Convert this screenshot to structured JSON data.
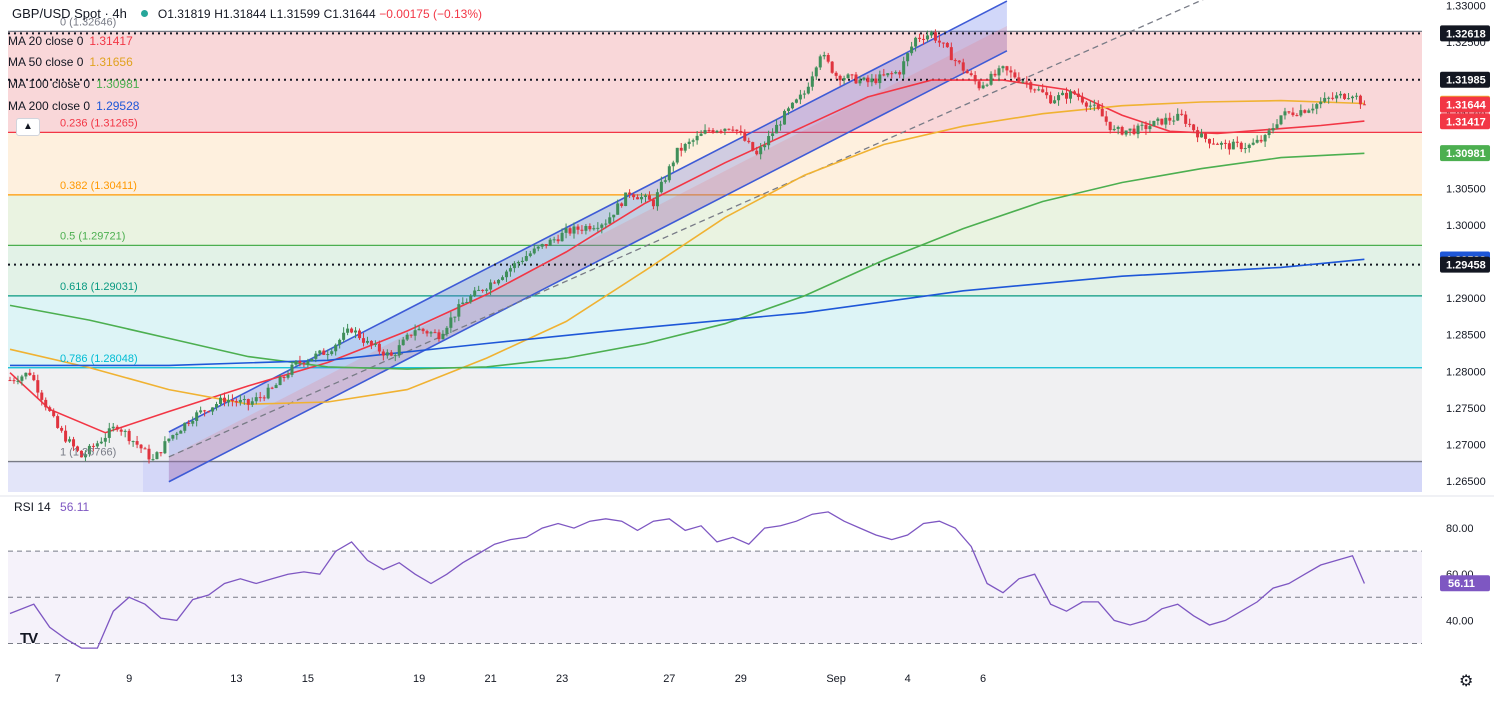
{
  "header": {
    "symbol": "GBP/USD Spot · 4h",
    "open": "O1.31819",
    "high": "H1.31844",
    "low": "L1.31599",
    "close": "C1.31644",
    "change": "−0.00175 (−0.13%)",
    "change_color": "#f23645"
  },
  "indicators": [
    {
      "label": "MA 20 close 0",
      "value": "1.31417",
      "color": "#f23645"
    },
    {
      "label": "MA 50 close 0",
      "value": "1.31656",
      "color": "#f0b232"
    },
    {
      "label": "MA 100 close 0",
      "value": "1.30981",
      "color": "#4caf50"
    },
    {
      "label": "MA 200 close 0",
      "value": "1.29528",
      "color": "#1e57d8"
    }
  ],
  "collapse_icon": "chevron-up-icon",
  "rsi_header": {
    "label": "RSI 14",
    "value": "56.11",
    "color": "#7e57c2"
  },
  "fib_levels": [
    {
      "ratio": 0,
      "label": "0 (1.32646)",
      "price": 1.32646,
      "color": "#787b86",
      "band": "#f7c9cc"
    },
    {
      "ratio": 0.236,
      "label": "0.236 (1.31265)",
      "price": 1.31265,
      "color": "#f23645",
      "band": "#fdebd3"
    },
    {
      "ratio": 0.382,
      "label": "0.382 (1.30411)",
      "price": 1.30411,
      "color": "#ff9800",
      "band": "#e3efd7"
    },
    {
      "ratio": 0.5,
      "label": "0.5 (1.29721)",
      "price": 1.29721,
      "color": "#4caf50",
      "band": "#d8eedf"
    },
    {
      "ratio": 0.618,
      "label": "0.618 (1.29031)",
      "price": 1.29031,
      "color": "#089981",
      "band": "#d2f0f3"
    },
    {
      "ratio": 0.786,
      "label": "0.786 (1.28048)",
      "price": 1.28048,
      "color": "#00bcd4",
      "band": "#ebebee"
    },
    {
      "ratio": 1,
      "label": "1 (1.26766)",
      "price": 1.26766,
      "color": "#787b86",
      "band": "#d9dcf7"
    }
  ],
  "horizontal_lines": [
    1.32618,
    1.31985,
    1.29458
  ],
  "chart_data": [
    {
      "type": "candlestick",
      "title": "GBP/USD Spot · 4h",
      "x_ticks": [
        "7",
        "9",
        "13",
        "15",
        "19",
        "21",
        "23",
        "27",
        "29",
        "Sep",
        "4",
        "6"
      ],
      "y_ticks": [
        "1.33000",
        "1.32500",
        "1.32000",
        "1.31500",
        "1.31000",
        "1.30500",
        "1.30000",
        "1.29500",
        "1.29000",
        "1.28500",
        "1.28000",
        "1.27500",
        "1.27000",
        "1.26500"
      ],
      "ylim": [
        1.2635,
        1.3302
      ],
      "price_tags": [
        {
          "value": "1.32618",
          "bg": "#131722",
          "fg": "#ffffff"
        },
        {
          "value": "1.31985",
          "bg": "#131722",
          "fg": "#ffffff"
        },
        {
          "value": "1.31656",
          "bg": "#f0b232",
          "fg": "#131722"
        },
        {
          "value": "1.31644",
          "bg": "#f23645",
          "fg": "#ffffff"
        },
        {
          "value": "1.31417",
          "bg": "#f23645",
          "fg": "#ffffff"
        },
        {
          "value": "1.30981",
          "bg": "#4caf50",
          "fg": "#ffffff"
        },
        {
          "value": "1.29528",
          "bg": "#1e57d8",
          "fg": "#ffffff"
        },
        {
          "value": "1.29458",
          "bg": "#131722",
          "fg": "#ffffff"
        }
      ],
      "waypoints": [
        [
          0,
          1.2788
        ],
        [
          5,
          1.2798
        ],
        [
          12,
          1.2722
        ],
        [
          18,
          1.2683
        ],
        [
          27,
          1.2726
        ],
        [
          33,
          1.2695
        ],
        [
          36,
          1.2678
        ],
        [
          40,
          1.2708
        ],
        [
          46,
          1.2738
        ],
        [
          54,
          1.2762
        ],
        [
          60,
          1.2755
        ],
        [
          66,
          1.2775
        ],
        [
          72,
          1.281
        ],
        [
          80,
          1.2828
        ],
        [
          86,
          1.2858
        ],
        [
          90,
          1.2838
        ],
        [
          96,
          1.282
        ],
        [
          102,
          1.2858
        ],
        [
          108,
          1.285
        ],
        [
          114,
          1.2893
        ],
        [
          122,
          1.2925
        ],
        [
          130,
          1.2958
        ],
        [
          140,
          1.299
        ],
        [
          150,
          1.3005
        ],
        [
          156,
          1.3045
        ],
        [
          162,
          1.303
        ],
        [
          168,
          1.31
        ],
        [
          176,
          1.313
        ],
        [
          182,
          1.3135
        ],
        [
          188,
          1.3095
        ],
        [
          195,
          1.315
        ],
        [
          200,
          1.318
        ],
        [
          204,
          1.3235
        ],
        [
          208,
          1.3205
        ],
        [
          216,
          1.3195
        ],
        [
          224,
          1.321
        ],
        [
          228,
          1.3255
        ],
        [
          232,
          1.3262
        ],
        [
          238,
          1.3225
        ],
        [
          244,
          1.319
        ],
        [
          250,
          1.3212
        ],
        [
          256,
          1.3195
        ],
        [
          262,
          1.3172
        ],
        [
          268,
          1.318
        ],
        [
          274,
          1.3155
        ],
        [
          278,
          1.3128
        ],
        [
          284,
          1.313
        ],
        [
          290,
          1.3142
        ],
        [
          295,
          1.3148
        ],
        [
          300,
          1.312
        ],
        [
          306,
          1.3108
        ],
        [
          312,
          1.3108
        ],
        [
          316,
          1.3118
        ],
        [
          320,
          1.315
        ],
        [
          326,
          1.3158
        ],
        [
          332,
          1.3172
        ],
        [
          338,
          1.318
        ],
        [
          341,
          1.3164
        ]
      ],
      "ma_series": [
        {
          "name": "MA 20 close 0",
          "color": "#f23645",
          "points": [
            [
              0,
              1.2798
            ],
            [
              10,
              1.2748
            ],
            [
              24,
              1.2716
            ],
            [
              40,
              1.2745
            ],
            [
              60,
              1.278
            ],
            [
              80,
              1.2812
            ],
            [
              100,
              1.2855
            ],
            [
              120,
              1.2905
            ],
            [
              140,
              1.2963
            ],
            [
              160,
              1.303
            ],
            [
              180,
              1.3085
            ],
            [
              200,
              1.3135
            ],
            [
              216,
              1.3175
            ],
            [
              232,
              1.3198
            ],
            [
              250,
              1.3198
            ],
            [
              266,
              1.3185
            ],
            [
              280,
              1.315
            ],
            [
              292,
              1.3128
            ],
            [
              304,
              1.3125
            ],
            [
              316,
              1.313
            ],
            [
              330,
              1.3136
            ],
            [
              341,
              1.3142
            ]
          ]
        },
        {
          "name": "MA 50 close 0",
          "color": "#f0b232",
          "points": [
            [
              0,
              1.283
            ],
            [
              20,
              1.2805
            ],
            [
              40,
              1.2775
            ],
            [
              60,
              1.2755
            ],
            [
              80,
              1.2758
            ],
            [
              100,
              1.2775
            ],
            [
              120,
              1.2818
            ],
            [
              140,
              1.2868
            ],
            [
              160,
              1.2938
            ],
            [
              180,
              1.301
            ],
            [
              200,
              1.3068
            ],
            [
              220,
              1.311
            ],
            [
              240,
              1.3135
            ],
            [
              260,
              1.3152
            ],
            [
              280,
              1.3163
            ],
            [
              300,
              1.3168
            ],
            [
              320,
              1.317
            ],
            [
              341,
              1.3166
            ]
          ]
        },
        {
          "name": "MA 100 close 0",
          "color": "#4caf50",
          "points": [
            [
              0,
              1.289
            ],
            [
              20,
              1.287
            ],
            [
              40,
              1.2845
            ],
            [
              60,
              1.282
            ],
            [
              80,
              1.2806
            ],
            [
              100,
              1.2803
            ],
            [
              120,
              1.2806
            ],
            [
              140,
              1.2818
            ],
            [
              160,
              1.2838
            ],
            [
              180,
              1.2865
            ],
            [
              200,
              1.2903
            ],
            [
              220,
              1.2952
            ],
            [
              240,
              1.2995
            ],
            [
              260,
              1.3032
            ],
            [
              280,
              1.3058
            ],
            [
              300,
              1.3077
            ],
            [
              320,
              1.3092
            ],
            [
              341,
              1.3098
            ]
          ]
        },
        {
          "name": "MA 200 close 0",
          "color": "#1e57d8",
          "points": [
            [
              0,
              1.2808
            ],
            [
              40,
              1.2808
            ],
            [
              80,
              1.2815
            ],
            [
              120,
              1.2838
            ],
            [
              160,
              1.286
            ],
            [
              200,
              1.288
            ],
            [
              240,
              1.291
            ],
            [
              280,
              1.293
            ],
            [
              320,
              1.2942
            ],
            [
              341,
              1.2953
            ]
          ]
        }
      ]
    },
    {
      "type": "line",
      "title": "RSI 14",
      "y_ticks": [
        "80.00",
        "60.00",
        "40.00"
      ],
      "ylim": [
        25,
        90
      ],
      "series": [
        {
          "name": "RSI 14",
          "color": "#7e57c2",
          "points": [
            [
              0,
              43
            ],
            [
              6,
              47
            ],
            [
              10,
              37
            ],
            [
              14,
              32
            ],
            [
              18,
              28
            ],
            [
              22,
              28
            ],
            [
              26,
              44
            ],
            [
              30,
              50
            ],
            [
              34,
              47
            ],
            [
              38,
              41
            ],
            [
              42,
              40
            ],
            [
              46,
              49
            ],
            [
              50,
              51
            ],
            [
              54,
              56
            ],
            [
              58,
              58
            ],
            [
              62,
              56
            ],
            [
              66,
              58
            ],
            [
              70,
              60
            ],
            [
              74,
              61
            ],
            [
              78,
              60
            ],
            [
              82,
              70
            ],
            [
              86,
              74
            ],
            [
              90,
              66
            ],
            [
              94,
              62
            ],
            [
              98,
              65
            ],
            [
              102,
              60
            ],
            [
              106,
              56
            ],
            [
              110,
              60
            ],
            [
              114,
              65
            ],
            [
              118,
              69
            ],
            [
              122,
              73
            ],
            [
              126,
              75
            ],
            [
              130,
              76
            ],
            [
              134,
              80
            ],
            [
              138,
              82
            ],
            [
              142,
              80
            ],
            [
              146,
              83
            ],
            [
              150,
              84
            ],
            [
              154,
              83
            ],
            [
              158,
              79
            ],
            [
              162,
              83
            ],
            [
              166,
              84
            ],
            [
              170,
              79
            ],
            [
              174,
              81
            ],
            [
              178,
              74
            ],
            [
              182,
              76
            ],
            [
              186,
              73
            ],
            [
              190,
              80
            ],
            [
              194,
              81
            ],
            [
              198,
              83
            ],
            [
              202,
              86
            ],
            [
              206,
              87
            ],
            [
              210,
              83
            ],
            [
              214,
              80
            ],
            [
              218,
              77
            ],
            [
              222,
              75
            ],
            [
              226,
              77
            ],
            [
              230,
              82
            ],
            [
              234,
              83
            ],
            [
              238,
              80
            ],
            [
              242,
              72
            ],
            [
              246,
              56
            ],
            [
              250,
              52
            ],
            [
              254,
              58
            ],
            [
              258,
              60
            ],
            [
              262,
              47
            ],
            [
              266,
              44
            ],
            [
              270,
              48
            ],
            [
              274,
              48
            ],
            [
              278,
              40
            ],
            [
              282,
              38
            ],
            [
              286,
              40
            ],
            [
              290,
              45
            ],
            [
              294,
              47
            ],
            [
              298,
              42
            ],
            [
              302,
              38
            ],
            [
              306,
              40
            ],
            [
              310,
              44
            ],
            [
              314,
              48
            ],
            [
              318,
              54
            ],
            [
              322,
              56
            ],
            [
              326,
              60
            ],
            [
              330,
              64
            ],
            [
              334,
              66
            ],
            [
              338,
              68
            ],
            [
              341,
              56
            ]
          ]
        }
      ],
      "levels": [
        70,
        50,
        30
      ]
    }
  ],
  "rsi_last_tag": {
    "value": "56.11",
    "bg": "#7e57c2",
    "fg": "#ffffff"
  },
  "logo": "TV",
  "settings_icon": "settings-icon",
  "settings_glyph": "⚙"
}
